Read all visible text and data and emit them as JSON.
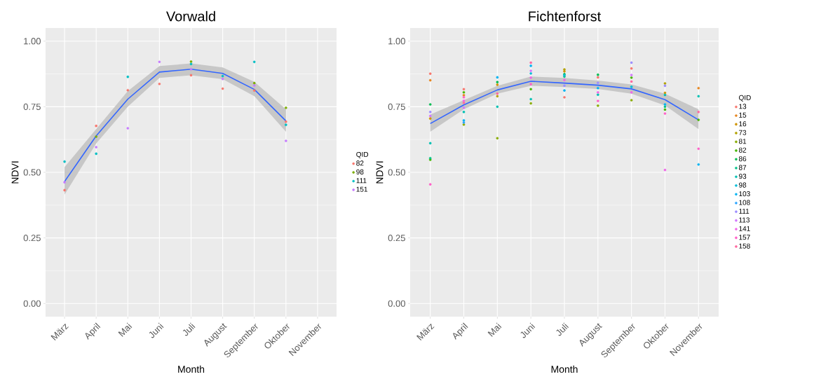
{
  "chart_data": [
    {
      "type": "scatter",
      "title": "Vorwald",
      "xlabel": "Month",
      "ylabel": "NDVI",
      "legend_title": "QID",
      "legend": "right",
      "grid": true,
      "marker": "circle",
      "categories": [
        "März",
        "April",
        "Mai",
        "Juni",
        "Juli",
        "August",
        "September",
        "Oktober",
        "November"
      ],
      "ylim": [
        -0.05,
        1.05
      ],
      "yticks": [
        {
          "value": 0,
          "label": "0.00"
        },
        {
          "value": 0.25,
          "label": "0.25"
        },
        {
          "value": 0.5,
          "label": "0.50"
        },
        {
          "value": 0.75,
          "label": "0.75"
        },
        {
          "value": 1,
          "label": "1.00"
        }
      ],
      "series": [
        {
          "name": "82",
          "color": "#f8766d",
          "values": [
            0.432,
            0.677,
            0.813,
            0.837,
            0.87,
            0.819,
            0.812,
            0.693,
            null
          ]
        },
        {
          "name": "98",
          "color": "#7cae00",
          "values": [
            null,
            0.636,
            null,
            null,
            0.922,
            null,
            0.84,
            0.746,
            null
          ]
        },
        {
          "name": "111",
          "color": "#00bfc4",
          "values": [
            0.541,
            0.571,
            0.864,
            null,
            0.913,
            0.867,
            0.921,
            0.681,
            null
          ]
        },
        {
          "name": "151",
          "color": "#c77cff",
          "values": [
            0.462,
            0.596,
            0.668,
            0.921,
            0.893,
            0.856,
            0.831,
            0.62,
            null
          ]
        },
        {
          "type": "line",
          "marker": "none",
          "color": "#3366ff",
          "values": [
            0.465,
            0.639,
            0.779,
            0.882,
            0.893,
            0.877,
            0.816,
            0.696,
            null
          ],
          "lower": [
            0.415,
            0.61,
            0.75,
            0.86,
            0.87,
            0.855,
            0.79,
            0.655,
            null
          ],
          "upper": [
            0.52,
            0.665,
            0.81,
            0.905,
            0.915,
            0.9,
            0.845,
            0.74,
            null
          ]
        }
      ]
    },
    {
      "type": "scatter",
      "title": "Fichtenforst",
      "xlabel": "Month",
      "ylabel": "NDVI",
      "legend_title": "QID",
      "legend": "right",
      "grid": true,
      "marker": "circle",
      "categories": [
        "März",
        "April",
        "Mai",
        "Juni",
        "Juli",
        "August",
        "September",
        "Oktober",
        "November"
      ],
      "ylim": [
        -0.05,
        1.05
      ],
      "yticks": [
        {
          "value": 0,
          "label": "0.00"
        },
        {
          "value": 0.25,
          "label": "0.25"
        },
        {
          "value": 0.5,
          "label": "0.50"
        },
        {
          "value": 0.75,
          "label": "0.75"
        },
        {
          "value": 1,
          "label": "1.00"
        }
      ],
      "series": [
        {
          "name": "13",
          "color": "#f8766d",
          "values": [
            0.876,
            0.817,
            null,
            null,
            0.786,
            0.862,
            0.896,
            null,
            null
          ]
        },
        {
          "name": "15",
          "color": "#e7851e",
          "values": [
            0.851,
            0.794,
            null,
            null,
            null,
            null,
            null,
            null,
            0.821
          ]
        },
        {
          "name": "16",
          "color": "#d09400",
          "values": [
            0.705,
            null,
            0.834,
            null,
            0.885,
            null,
            null,
            0.803,
            null
          ]
        },
        {
          "name": "73",
          "color": "#b2a100",
          "values": [
            null,
            null,
            0.79,
            null,
            0.892,
            null,
            null,
            0.839,
            null
          ]
        },
        {
          "name": "81",
          "color": "#89ac00",
          "values": [
            null,
            0.682,
            0.63,
            0.763,
            null,
            0.754,
            0.775,
            null,
            null
          ]
        },
        {
          "name": "82",
          "color": "#45b500",
          "values": [
            0.548,
            0.805,
            null,
            0.817,
            null,
            null,
            0.861,
            0.739,
            0.7
          ]
        },
        {
          "name": "86",
          "color": "#00bc51",
          "values": [
            0.759,
            null,
            0.844,
            null,
            0.874,
            0.872,
            null,
            null,
            null
          ]
        },
        {
          "name": "87",
          "color": "#00c087",
          "values": [
            0.554,
            null,
            null,
            null,
            0.865,
            null,
            null,
            0.75,
            null
          ]
        },
        {
          "name": "93",
          "color": "#00c0b2",
          "values": [
            0.611,
            0.73,
            0.75,
            0.779,
            null,
            0.796,
            null,
            0.795,
            0.79
          ]
        },
        {
          "name": "98",
          "color": "#00bcd6",
          "values": [
            null,
            null,
            null,
            0.877,
            0.87,
            null,
            0.826,
            null,
            null
          ]
        },
        {
          "name": "103",
          "color": "#00b3f2",
          "values": [
            null,
            0.698,
            0.862,
            0.906,
            0.812,
            0.821,
            null,
            0.759,
            0.53
          ]
        },
        {
          "name": "108",
          "color": "#29a3ff",
          "values": [
            null,
            0.69,
            null,
            null,
            null,
            null,
            null,
            null,
            null
          ]
        },
        {
          "name": "111",
          "color": "#9c8dff",
          "values": [
            0.73,
            null,
            null,
            null,
            0.83,
            0.841,
            0.918,
            0.83,
            null
          ]
        },
        {
          "name": "113",
          "color": "#d277ff",
          "values": [
            0.715,
            0.746,
            null,
            0.887,
            null,
            null,
            0.871,
            null,
            null
          ]
        },
        {
          "name": "141",
          "color": "#f166e8",
          "values": [
            null,
            0.773,
            null,
            0.861,
            0.852,
            0.805,
            0.805,
            0.509,
            null
          ]
        },
        {
          "name": "157",
          "color": "#ff61c7",
          "values": [
            0.454,
            0.786,
            null,
            0.836,
            null,
            0.772,
            null,
            0.724,
            0.59
          ]
        },
        {
          "name": "158",
          "color": "#ff689f",
          "values": [
            null,
            0.765,
            0.8,
            0.918,
            null,
            null,
            0.846,
            null,
            0.73
          ]
        },
        {
          "type": "line",
          "marker": "none",
          "color": "#3366ff",
          "values": [
            0.686,
            0.757,
            0.814,
            0.847,
            0.84,
            0.832,
            0.818,
            0.777,
            0.7
          ],
          "lower": [
            0.655,
            0.74,
            0.8,
            0.83,
            0.825,
            0.818,
            0.8,
            0.755,
            0.665
          ],
          "upper": [
            0.72,
            0.775,
            0.83,
            0.865,
            0.86,
            0.85,
            0.835,
            0.8,
            0.74
          ]
        }
      ]
    }
  ]
}
